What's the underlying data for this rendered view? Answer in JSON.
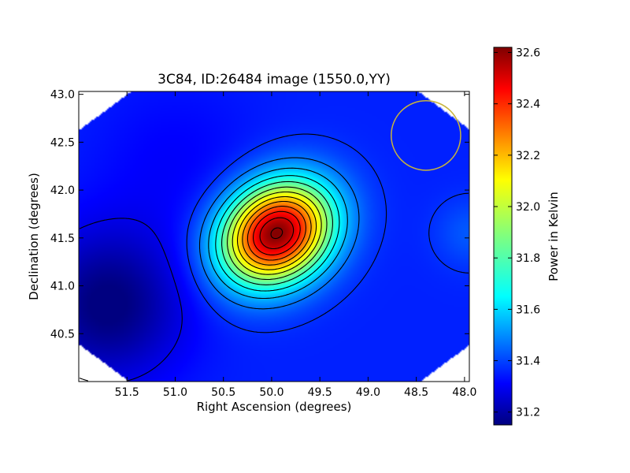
{
  "chart_data": {
    "type": "heatmap",
    "title": "3C84, ID:26484 image (1550.0,YY)",
    "xlabel": "Right Ascension (degrees)",
    "ylabel": "Declination (degrees)",
    "xlim": [
      52.0,
      47.95
    ],
    "ylim": [
      40.0,
      43.03
    ],
    "x_inverted": true,
    "x_ticks": [
      {
        "value": 51.5,
        "label": "51.5"
      },
      {
        "value": 51.0,
        "label": "51.0"
      },
      {
        "value": 50.5,
        "label": "50.5"
      },
      {
        "value": 50.0,
        "label": "50.0"
      },
      {
        "value": 49.5,
        "label": "49.5"
      },
      {
        "value": 49.0,
        "label": "49.0"
      },
      {
        "value": 48.5,
        "label": "48.5"
      },
      {
        "value": 48.0,
        "label": "48.0"
      }
    ],
    "y_ticks": [
      {
        "value": 40.5,
        "label": "40.5"
      },
      {
        "value": 41.0,
        "label": "41.0"
      },
      {
        "value": 41.5,
        "label": "41.5"
      },
      {
        "value": 42.0,
        "label": "42.0"
      },
      {
        "value": 42.5,
        "label": "42.5"
      },
      {
        "value": 43.0,
        "label": "43.0"
      }
    ],
    "colorbar": {
      "label": "Power in Kelvin",
      "colormap": "jet",
      "range": [
        31.15,
        32.62
      ],
      "ticks": [
        {
          "value": 31.2,
          "label": "31.2"
        },
        {
          "value": 31.4,
          "label": "31.4"
        },
        {
          "value": 31.6,
          "label": "31.6"
        },
        {
          "value": 31.8,
          "label": "31.8"
        },
        {
          "value": 32.0,
          "label": "32.0"
        },
        {
          "value": 32.2,
          "label": "32.2"
        },
        {
          "value": 32.4,
          "label": "32.4"
        },
        {
          "value": 32.6,
          "label": "32.6"
        }
      ]
    },
    "peak": {
      "ra": 49.95,
      "dec": 41.55,
      "value": 32.62
    },
    "background_min": {
      "ra": 51.7,
      "dec": 40.8,
      "value": 31.15
    },
    "contour_levels": [
      31.3,
      31.4,
      31.5,
      31.6,
      31.7,
      31.8,
      31.9,
      32.0,
      32.1,
      32.2,
      32.3,
      32.4,
      32.5,
      32.6
    ],
    "beam_circle": {
      "ra": 48.4,
      "dec": 42.57,
      "radius_deg": 0.36,
      "color": "#c8b43c"
    },
    "grid": false,
    "legend": "none"
  }
}
